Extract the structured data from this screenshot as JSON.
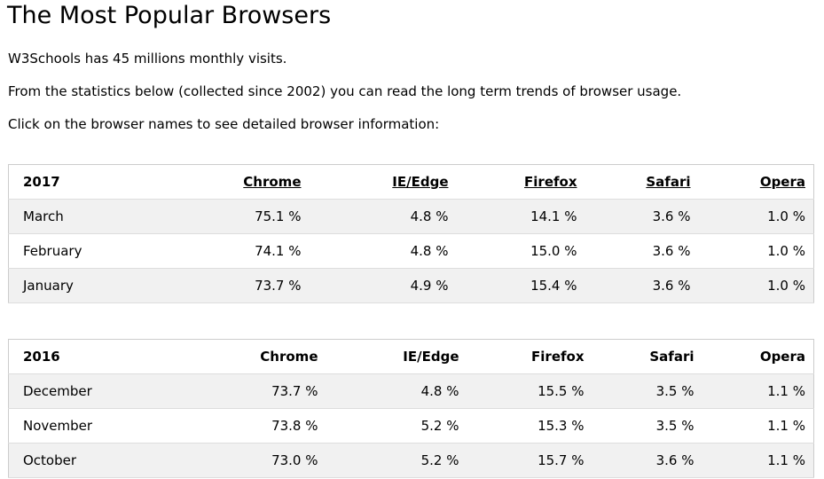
{
  "page": {
    "title": "The Most Popular Browsers",
    "intro": [
      "W3Schools has 45 millions monthly visits.",
      "From the statistics below (collected since 2002) you can read the long term trends of browser usage.",
      "Click on the browser names to see detailed browser information:"
    ]
  },
  "tables": {
    "y2017": {
      "year": "2017",
      "headers": [
        "Chrome",
        "IE/Edge",
        "Firefox",
        "Safari",
        "Opera"
      ],
      "rows": [
        {
          "month": "March",
          "values": [
            "75.1 %",
            "4.8 %",
            "14.1 %",
            "3.6 %",
            "1.0 %"
          ]
        },
        {
          "month": "February",
          "values": [
            "74.1 %",
            "4.8 %",
            "15.0 %",
            "3.6 %",
            "1.0 %"
          ]
        },
        {
          "month": "January",
          "values": [
            "73.7 %",
            "4.9 %",
            "15.4 %",
            "3.6 %",
            "1.0 %"
          ]
        }
      ]
    },
    "y2016": {
      "year": "2016",
      "headers": [
        "Chrome",
        "IE/Edge",
        "Firefox",
        "Safari",
        "Opera"
      ],
      "rows": [
        {
          "month": "December",
          "values": [
            "73.7 %",
            "4.8 %",
            "15.5 %",
            "3.5 %",
            "1.1 %"
          ]
        },
        {
          "month": "November",
          "values": [
            "73.8 %",
            "5.2 %",
            "15.3 %",
            "3.5 %",
            "1.1 %"
          ]
        },
        {
          "month": "October",
          "values": [
            "73.0 %",
            "5.2 %",
            "15.7 %",
            "3.6 %",
            "1.1 %"
          ]
        }
      ]
    }
  }
}
